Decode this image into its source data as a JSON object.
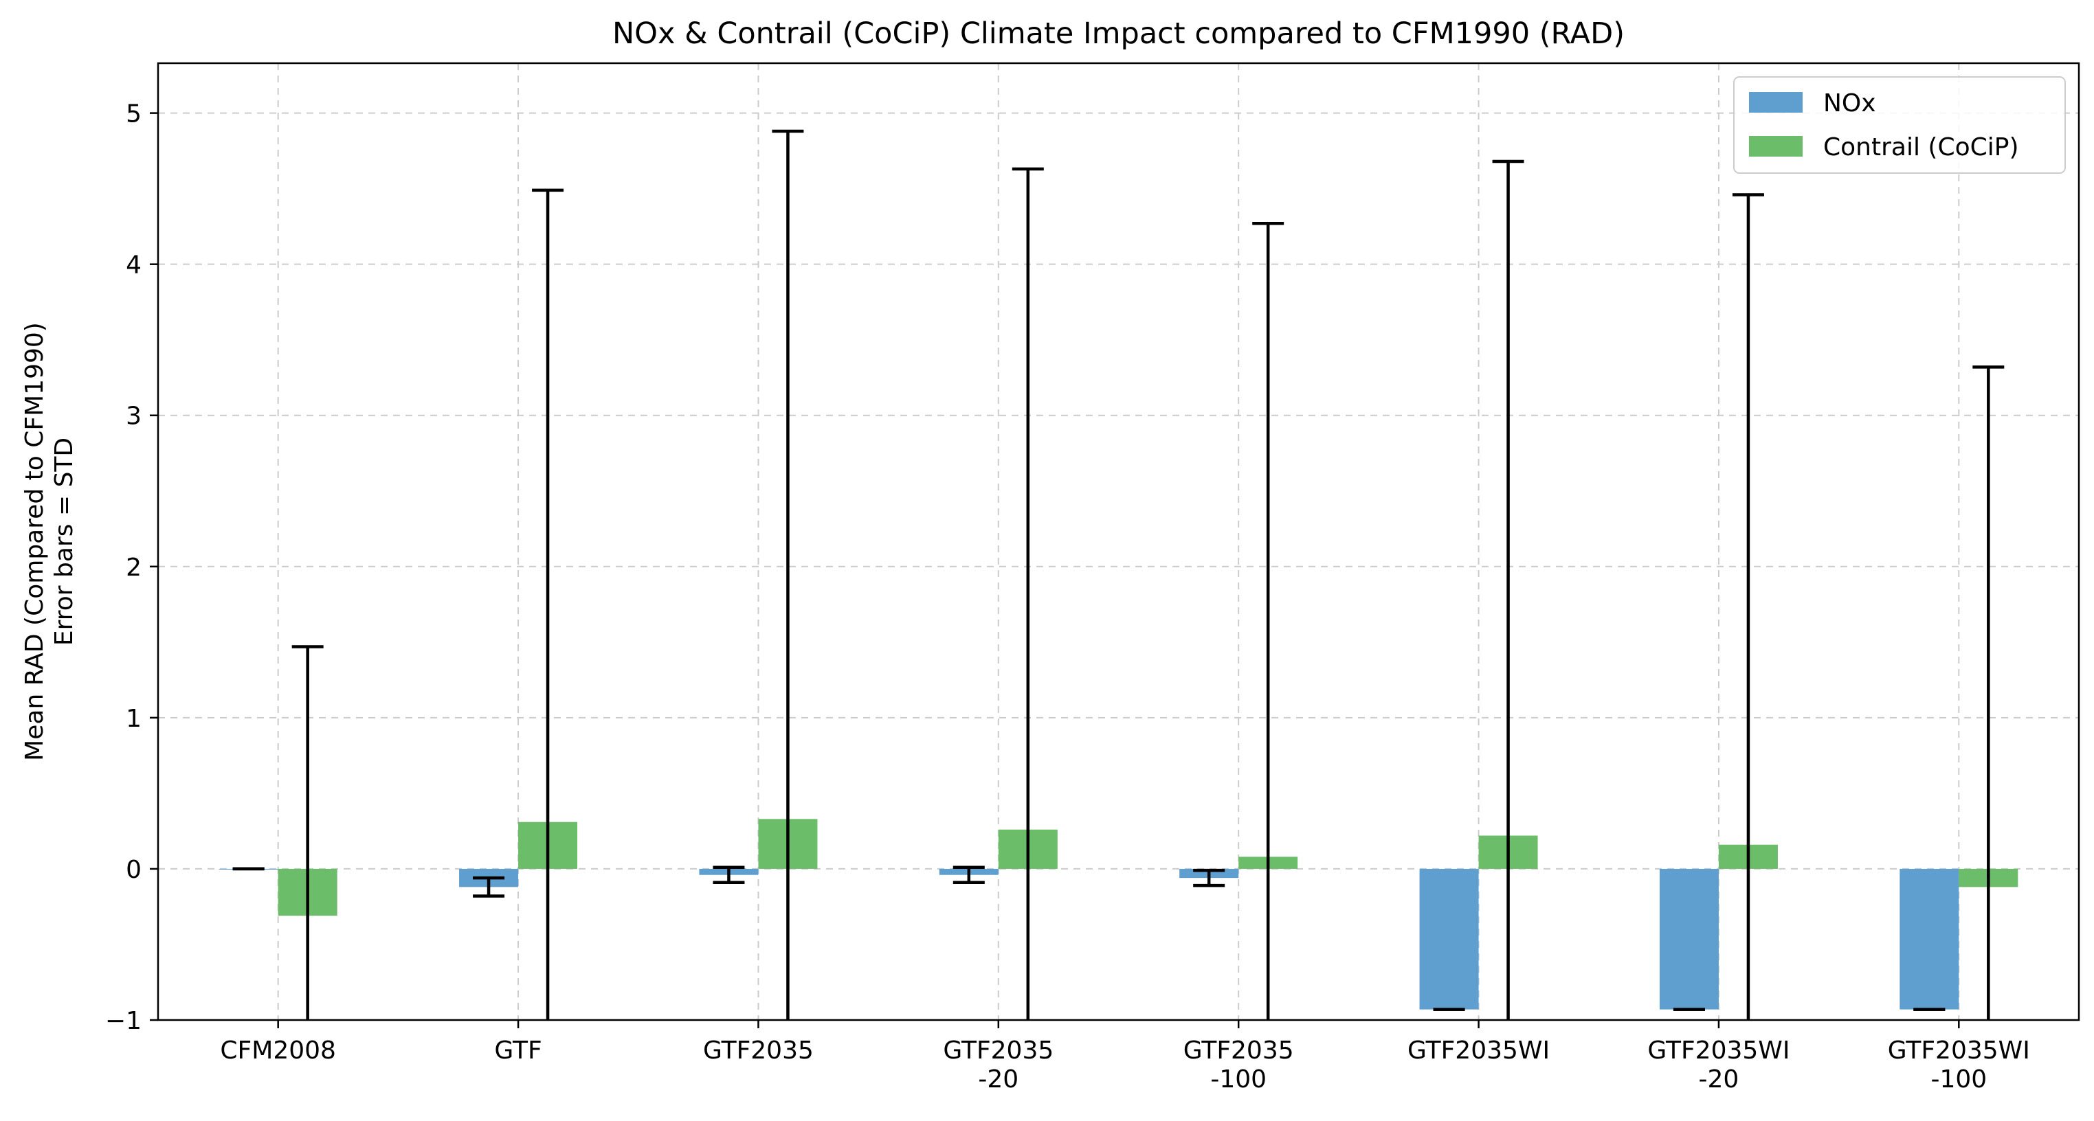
{
  "chart_data": {
    "type": "bar",
    "title": "NOx & Contrail (CoCiP) Climate Impact compared to CFM1990 (RAD)",
    "ylabel_lines": [
      "Mean RAD (Compared to CFM1990)",
      "Error bars = STD"
    ],
    "xlabel": "",
    "ylim": [
      -1,
      5.33
    ],
    "yticks": [
      -1,
      0,
      1,
      2,
      3,
      4,
      5
    ],
    "grid": true,
    "legend_position": "top-right",
    "categories": [
      [
        "CFM2008"
      ],
      [
        "GTF"
      ],
      [
        "GTF2035"
      ],
      [
        "GTF2035",
        "-20"
      ],
      [
        "GTF2035",
        "-100"
      ],
      [
        "GTF2035WI"
      ],
      [
        "GTF2035WI",
        "-20"
      ],
      [
        "GTF2035WI",
        "-100"
      ]
    ],
    "series": [
      {
        "name": "NOx",
        "color": "#5f9fcf",
        "values": [
          0.0,
          -0.12,
          -0.04,
          -0.04,
          -0.06,
          -0.93,
          -0.93,
          -0.93
        ],
        "std": [
          0.0,
          0.06,
          0.05,
          0.05,
          0.05,
          0.0,
          0.0,
          0.0
        ]
      },
      {
        "name": "Contrail (CoCiP)",
        "color": "#6bbd69",
        "values": [
          -0.31,
          0.31,
          0.33,
          0.26,
          0.08,
          0.22,
          0.16,
          -0.12
        ],
        "std": [
          1.78,
          4.18,
          4.55,
          4.37,
          4.19,
          4.46,
          4.3,
          3.44
        ]
      }
    ]
  }
}
